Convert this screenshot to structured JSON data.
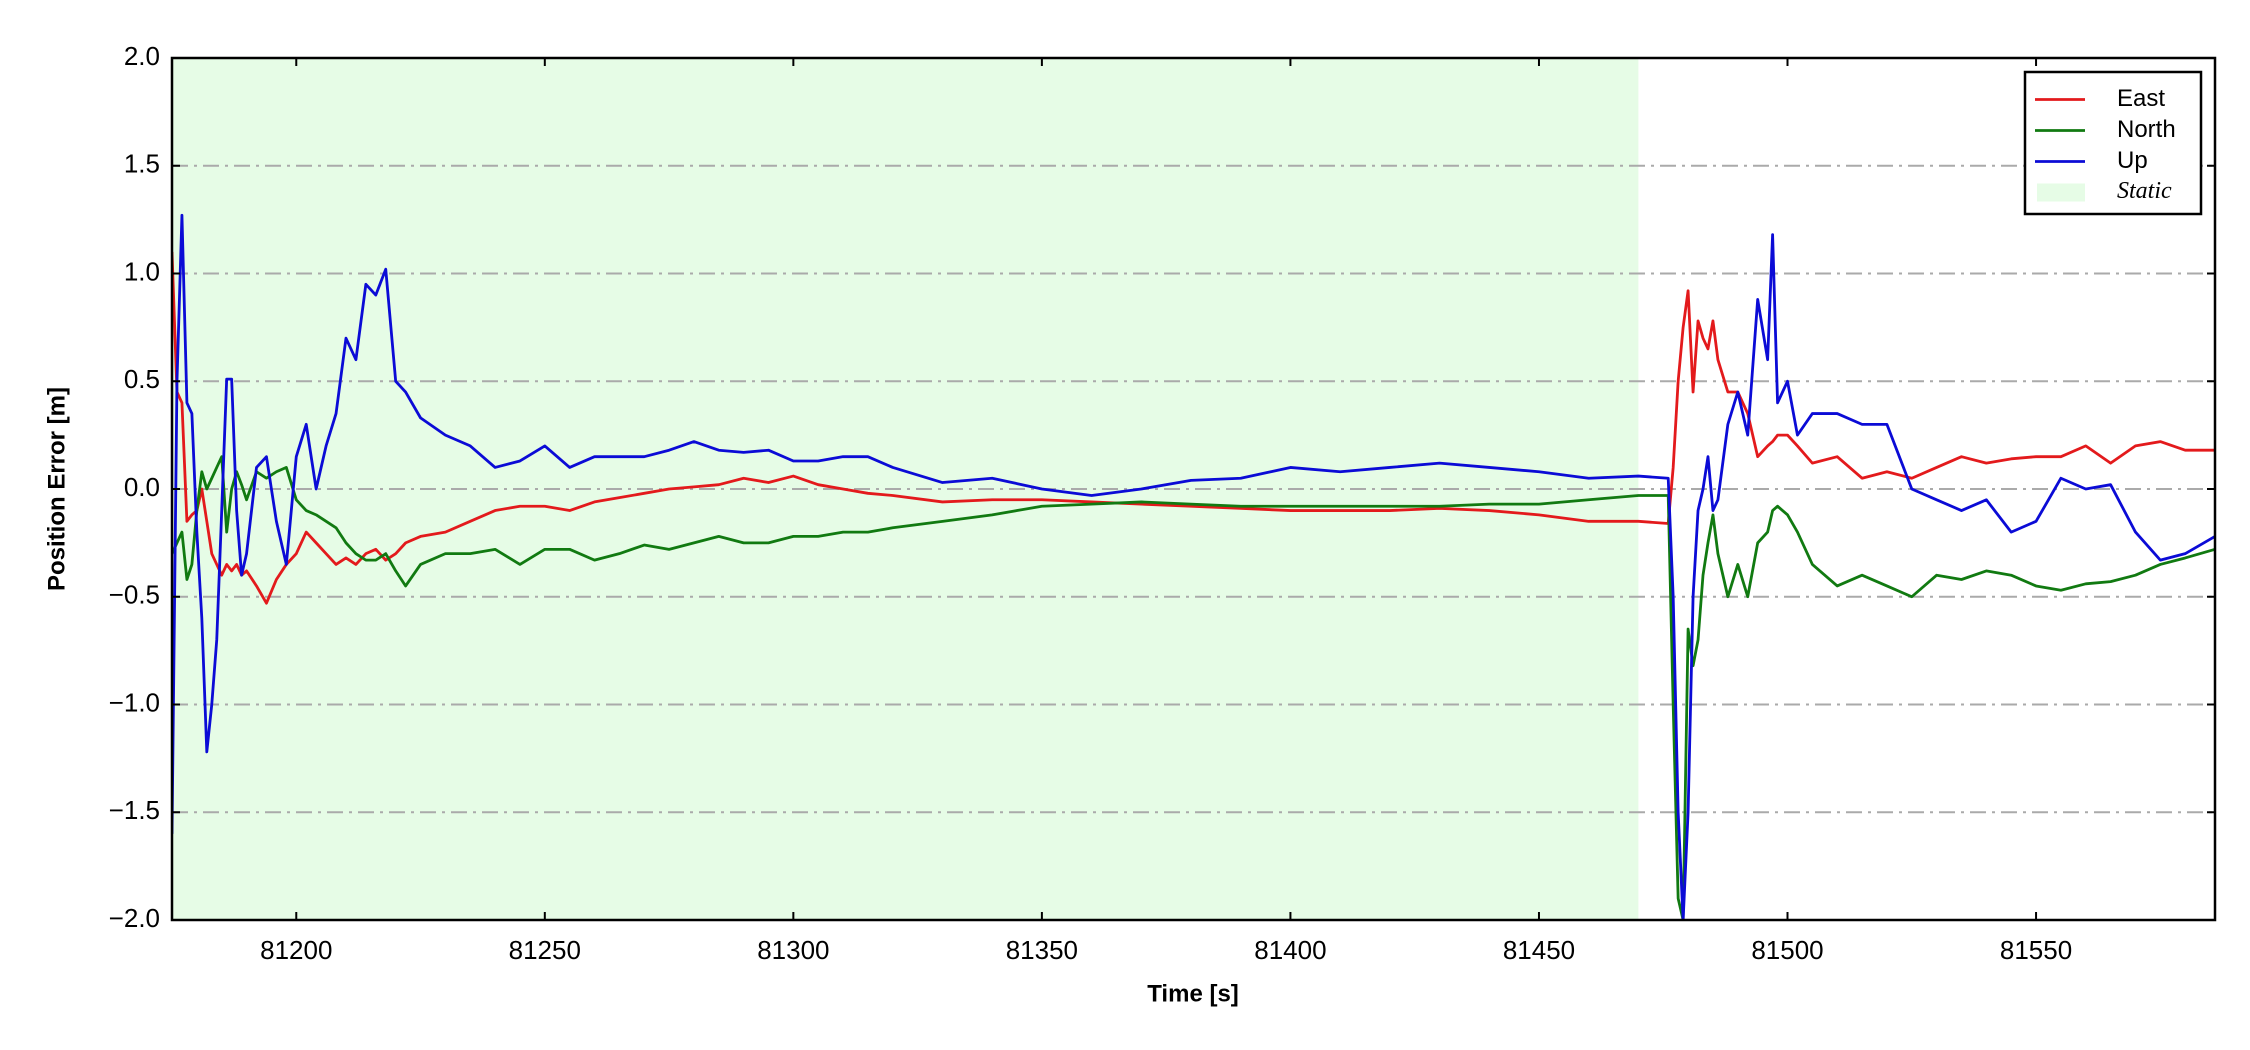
{
  "chart_data": {
    "type": "line",
    "x_label": "Time [s]",
    "y_label": "Position Error [m]",
    "xlim": [
      81175,
      81586
    ],
    "ylim": [
      -2.0,
      2.0
    ],
    "xticks": [
      81200,
      81250,
      81300,
      81350,
      81400,
      81450,
      81500,
      81550
    ],
    "yticks": [
      {
        "value": -2.0,
        "label": "−2.0"
      },
      {
        "value": -1.5,
        "label": "−1.5"
      },
      {
        "value": -1.0,
        "label": "−1.0"
      },
      {
        "value": -0.5,
        "label": "−0.5"
      },
      {
        "value": 0.0,
        "label": "0.0"
      },
      {
        "value": 0.5,
        "label": "0.5"
      },
      {
        "value": 1.0,
        "label": "1.0"
      },
      {
        "value": 1.5,
        "label": "1.5"
      },
      {
        "value": 2.0,
        "label": "2.0"
      }
    ],
    "grid": true,
    "legend": "upper right",
    "shaded": {
      "label": "Static",
      "x0": 81175,
      "x1": 81470,
      "color": "#e6fce6"
    },
    "x": [
      81175,
      81176,
      81177,
      81178,
      81179,
      81180,
      81181,
      81182,
      81183,
      81184,
      81185,
      81186,
      81187,
      81188,
      81189,
      81190,
      81192,
      81194,
      81196,
      81198,
      81200,
      81202,
      81204,
      81206,
      81208,
      81210,
      81212,
      81214,
      81216,
      81218,
      81220,
      81222,
      81225,
      81230,
      81235,
      81240,
      81245,
      81250,
      81255,
      81260,
      81265,
      81270,
      81275,
      81280,
      81285,
      81290,
      81295,
      81300,
      81305,
      81310,
      81315,
      81320,
      81330,
      81340,
      81350,
      81360,
      81370,
      81380,
      81390,
      81400,
      81410,
      81420,
      81430,
      81440,
      81450,
      81460,
      81470,
      81476,
      81477,
      81478,
      81479,
      81480,
      81481,
      81482,
      81483,
      81484,
      81485,
      81486,
      81488,
      81490,
      81492,
      81494,
      81496,
      81497,
      81498,
      81500,
      81502,
      81505,
      81510,
      81515,
      81520,
      81525,
      81530,
      81535,
      81540,
      81545,
      81550,
      81555,
      81560,
      81565,
      81570,
      81575,
      81580,
      81586
    ],
    "series": [
      {
        "name": "East",
        "color": "#e31a1c",
        "values": [
          1.1,
          0.45,
          0.4,
          -0.15,
          -0.12,
          -0.1,
          0.0,
          -0.15,
          -0.3,
          -0.35,
          -0.4,
          -0.35,
          -0.38,
          -0.35,
          -0.4,
          -0.38,
          -0.45,
          -0.53,
          -0.42,
          -0.35,
          -0.3,
          -0.2,
          -0.25,
          -0.3,
          -0.35,
          -0.32,
          -0.35,
          -0.3,
          -0.28,
          -0.33,
          -0.3,
          -0.25,
          -0.22,
          -0.2,
          -0.15,
          -0.1,
          -0.08,
          -0.08,
          -0.1,
          -0.06,
          -0.04,
          -0.02,
          0,
          0.01,
          0.02,
          0.05,
          0.03,
          0.06,
          0.02,
          0,
          -0.02,
          -0.03,
          -0.06,
          -0.05,
          -0.05,
          -0.06,
          -0.07,
          -0.08,
          -0.09,
          -0.1,
          -0.1,
          -0.1,
          -0.09,
          -0.1,
          -0.12,
          -0.15,
          -0.15,
          -0.16,
          0.1,
          0.5,
          0.75,
          0.92,
          0.45,
          0.78,
          0.7,
          0.65,
          0.78,
          0.6,
          0.45,
          0.45,
          0.35,
          0.15,
          0.2,
          0.22,
          0.25,
          0.25,
          0.2,
          0.12,
          0.15,
          0.05,
          0.08,
          0.05,
          0.1,
          0.15,
          0.12,
          0.14,
          0.15,
          0.15,
          0.2,
          0.12,
          0.2,
          0.22,
          0.18,
          0.18
        ]
      },
      {
        "name": "North",
        "color": "#117a11",
        "values": [
          -0.3,
          -0.25,
          -0.2,
          -0.42,
          -0.35,
          -0.1,
          0.08,
          0.0,
          0.05,
          0.1,
          0.15,
          -0.2,
          0.0,
          0.08,
          0.02,
          -0.05,
          0.08,
          0.05,
          0.08,
          0.1,
          -0.05,
          -0.1,
          -0.12,
          -0.15,
          -0.18,
          -0.25,
          -0.3,
          -0.33,
          -0.33,
          -0.3,
          -0.38,
          -0.45,
          -0.35,
          -0.3,
          -0.3,
          -0.28,
          -0.35,
          -0.28,
          -0.28,
          -0.33,
          -0.3,
          -0.26,
          -0.28,
          -0.25,
          -0.22,
          -0.25,
          -0.25,
          -0.22,
          -0.22,
          -0.2,
          -0.2,
          -0.18,
          -0.15,
          -0.12,
          -0.08,
          -0.07,
          -0.06,
          -0.07,
          -0.08,
          -0.08,
          -0.08,
          -0.08,
          -0.08,
          -0.07,
          -0.07,
          -0.05,
          -0.03,
          -0.03,
          -1.0,
          -1.9,
          -2.0,
          -0.65,
          -0.82,
          -0.7,
          -0.4,
          -0.25,
          -0.12,
          -0.3,
          -0.5,
          -0.35,
          -0.5,
          -0.25,
          -0.2,
          -0.1,
          -0.08,
          -0.12,
          -0.2,
          -0.35,
          -0.45,
          -0.4,
          -0.45,
          -0.5,
          -0.4,
          -0.42,
          -0.38,
          -0.4,
          -0.45,
          -0.47,
          -0.44,
          -0.43,
          -0.4,
          -0.35,
          -0.32,
          -0.28
        ]
      },
      {
        "name": "Up",
        "color": "#0b0bd6",
        "values": [
          -1.6,
          0.5,
          1.27,
          0.4,
          0.35,
          -0.2,
          -0.6,
          -1.22,
          -1.0,
          -0.7,
          -0.1,
          0.51,
          0.51,
          -0.1,
          -0.4,
          -0.3,
          0.1,
          0.15,
          -0.15,
          -0.35,
          0.15,
          0.3,
          0.0,
          0.2,
          0.35,
          0.7,
          0.6,
          0.95,
          0.9,
          1.02,
          0.5,
          0.45,
          0.33,
          0.25,
          0.2,
          0.1,
          0.13,
          0.2,
          0.1,
          0.15,
          0.15,
          0.15,
          0.18,
          0.22,
          0.18,
          0.17,
          0.18,
          0.13,
          0.13,
          0.15,
          0.15,
          0.1,
          0.03,
          0.05,
          0.0,
          -0.03,
          0.0,
          0.04,
          0.05,
          0.1,
          0.08,
          0.1,
          0.12,
          0.1,
          0.08,
          0.05,
          0.06,
          0.05,
          -0.5,
          -1.5,
          -2.0,
          -1.5,
          -0.5,
          -0.1,
          0.0,
          0.15,
          -0.1,
          -0.05,
          0.3,
          0.45,
          0.25,
          0.88,
          0.6,
          1.18,
          0.4,
          0.5,
          0.25,
          0.35,
          0.35,
          0.3,
          0.3,
          0.0,
          -0.05,
          -0.1,
          -0.05,
          -0.2,
          -0.15,
          0.05,
          0.0,
          0.02,
          -0.2,
          -0.33,
          -0.3,
          -0.22
        ]
      }
    ]
  }
}
